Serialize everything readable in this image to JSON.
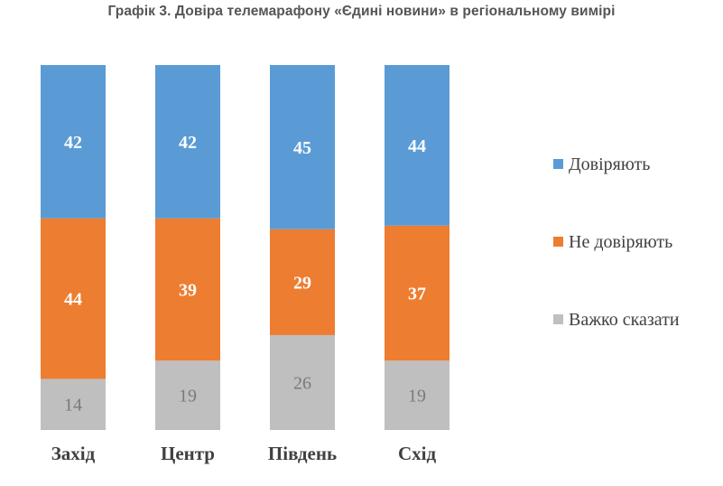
{
  "chart_data": {
    "type": "bar",
    "stacked": true,
    "title": "Графік 3. Довіра телемарафону «Єдині новини» в регіональному вимірі",
    "xlabel": "",
    "ylabel": "",
    "ylim": [
      0,
      100
    ],
    "grid": false,
    "legend_position": "right",
    "categories": [
      "Захід",
      "Центр",
      "Південь",
      "Схід"
    ],
    "series": [
      {
        "name": "Важко сказати",
        "color": "#bfbfbf",
        "label_style": "light",
        "values": [
          14,
          19,
          26,
          19
        ]
      },
      {
        "name": "Не довіряють",
        "color": "#ed7d31",
        "label_style": "strong",
        "values": [
          44,
          39,
          29,
          37
        ]
      },
      {
        "name": "Довіряють",
        "color": "#5b9bd5",
        "label_style": "strong",
        "values": [
          42,
          42,
          45,
          44
        ]
      }
    ],
    "legend": [
      "Довіряють",
      "Не довіряють",
      "Важко сказати"
    ]
  }
}
